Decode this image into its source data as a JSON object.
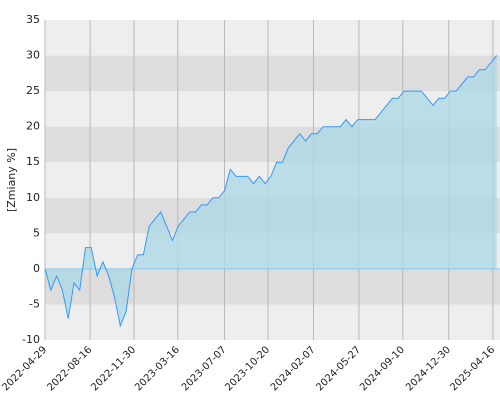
{
  "chart_data": {
    "type": "area",
    "y_label": "[Zmiany %]",
    "x": [
      "2022-04-29",
      "2022-05-13",
      "2022-05-27",
      "2022-06-10",
      "2022-06-24",
      "2022-07-08",
      "2022-07-22",
      "2022-08-05",
      "2022-08-19",
      "2022-09-02",
      "2022-09-16",
      "2022-09-30",
      "2022-10-14",
      "2022-10-28",
      "2022-11-11",
      "2022-11-25",
      "2022-12-09",
      "2022-12-23",
      "2023-01-06",
      "2023-01-20",
      "2023-02-03",
      "2023-02-17",
      "2023-03-03",
      "2023-03-17",
      "2023-03-31",
      "2023-04-14",
      "2023-04-28",
      "2023-05-12",
      "2023-05-26",
      "2023-06-09",
      "2023-06-23",
      "2023-07-07",
      "2023-07-21",
      "2023-08-04",
      "2023-08-18",
      "2023-09-01",
      "2023-09-15",
      "2023-09-29",
      "2023-10-13",
      "2023-10-27",
      "2023-11-10",
      "2023-11-24",
      "2023-12-08",
      "2023-12-22",
      "2024-01-05",
      "2024-01-19",
      "2024-02-02",
      "2024-02-16",
      "2024-03-01",
      "2024-03-15",
      "2024-03-29",
      "2024-04-12",
      "2024-04-26",
      "2024-05-10",
      "2024-05-24",
      "2024-06-07",
      "2024-06-21",
      "2024-07-05",
      "2024-07-19",
      "2024-08-02",
      "2024-08-16",
      "2024-08-30",
      "2024-09-13",
      "2024-09-27",
      "2024-10-11",
      "2024-10-25",
      "2024-11-08",
      "2024-11-22",
      "2024-12-06",
      "2024-12-20",
      "2025-01-03",
      "2025-01-17",
      "2025-01-31",
      "2025-02-14",
      "2025-02-28",
      "2025-03-14",
      "2025-03-28",
      "2025-04-11",
      "2025-04-25"
    ],
    "values": [
      0,
      -3,
      -1,
      -3,
      -7,
      -2,
      -3,
      3,
      3,
      -1,
      1,
      -1,
      -4,
      -8,
      -6,
      0,
      2,
      2,
      6,
      7,
      8,
      6,
      4,
      6,
      7,
      8,
      8,
      9,
      9,
      10,
      10,
      11,
      14,
      13,
      13,
      13,
      12,
      13,
      12,
      13,
      15,
      15,
      17,
      18,
      19,
      18,
      19,
      19,
      20,
      20,
      20,
      20,
      21,
      20,
      21,
      21,
      21,
      21,
      22,
      23,
      24,
      24,
      25,
      25,
      25,
      25,
      24,
      23,
      24,
      24,
      25,
      25,
      26,
      27,
      27,
      28,
      28,
      29,
      30
    ],
    "line_color": "#3399ff",
    "fill_color": "#add8e6",
    "xlim": [
      "2022-04-29",
      "2025-05-03"
    ],
    "xticks": [
      "2022-04-29",
      "2022-08-16",
      "2022-11-30",
      "2023-03-16",
      "2023-07-07",
      "2023-10-20",
      "2024-02-07",
      "2024-05-27",
      "2024-09-10",
      "2024-12-30",
      "2025-04-16"
    ],
    "ylim": [
      -10,
      35
    ],
    "yticks": [
      -10,
      -5,
      0,
      5,
      10,
      15,
      20,
      25,
      30,
      35
    ],
    "grid": true
  }
}
